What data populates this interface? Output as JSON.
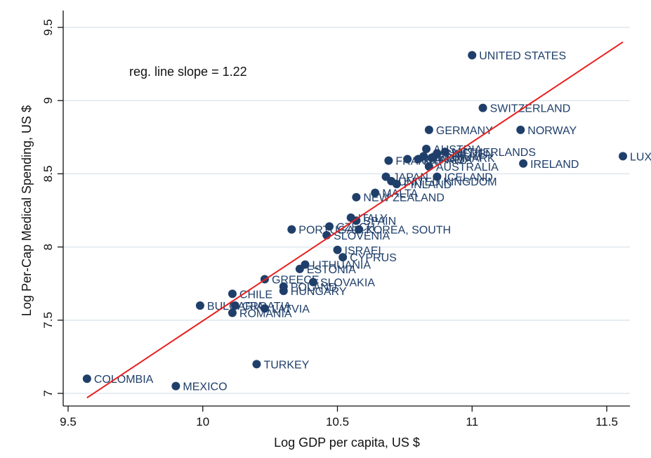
{
  "chart_data": {
    "type": "scatter",
    "xlabel": "Log GDP per capita, US $",
    "ylabel": "Log Per-Cap Medical Spending, US $",
    "xlim": [
      9.5,
      11.6
    ],
    "ylim": [
      7.0,
      9.5
    ],
    "x_ticks": [
      "9.5",
      "10",
      "10.5",
      "11",
      "11.5"
    ],
    "y_ticks": [
      "7",
      "7.5",
      "8",
      "8.5",
      "9",
      "9.5"
    ],
    "grid": "horizontal",
    "annotation": "reg. line slope = 1.22",
    "regression_line": {
      "slope": 1.22,
      "x": [
        9.57,
        11.56
      ],
      "y": [
        6.97,
        9.4
      ]
    },
    "marker_color": "#1f3f6a",
    "line_color": "#e8201f",
    "points": [
      {
        "label": "UNITED STATES",
        "x": 11.0,
        "y": 9.31
      },
      {
        "label": "SWITZERLAND",
        "x": 11.04,
        "y": 8.95
      },
      {
        "label": "GERMANY",
        "x": 10.84,
        "y": 8.8
      },
      {
        "label": "NORWAY",
        "x": 11.18,
        "y": 8.8
      },
      {
        "label": "LUX",
        "x": 11.56,
        "y": 8.62
      },
      {
        "label": "IRELAND",
        "x": 11.19,
        "y": 8.57
      },
      {
        "label": "NETHERLANDS",
        "x": 10.9,
        "y": 8.65
      },
      {
        "label": "AUSTRIA",
        "x": 10.83,
        "y": 8.67
      },
      {
        "label": "SWEDEN",
        "x": 10.87,
        "y": 8.64
      },
      {
        "label": "DENMARK",
        "x": 10.85,
        "y": 8.61
      },
      {
        "label": "CANADA",
        "x": 10.8,
        "y": 8.6
      },
      {
        "label": "BELGIUM",
        "x": 10.82,
        "y": 8.62
      },
      {
        "label": "FINLAND",
        "x": 10.76,
        "y": 8.6
      },
      {
        "label": "FRANCE",
        "x": 10.69,
        "y": 8.59
      },
      {
        "label": "AUSTRALIA",
        "x": 10.84,
        "y": 8.55
      },
      {
        "label": "JAPAN",
        "x": 10.68,
        "y": 8.48
      },
      {
        "label": "ICELAND",
        "x": 10.87,
        "y": 8.48
      },
      {
        "label": "UNITED KINGDOM",
        "x": 10.7,
        "y": 8.45
      },
      {
        "label": "FINLAND",
        "x": 10.72,
        "y": 8.43
      },
      {
        "label": "MALTA",
        "x": 10.64,
        "y": 8.37
      },
      {
        "label": "NEW ZEALAND",
        "x": 10.57,
        "y": 8.34
      },
      {
        "label": "ITALY",
        "x": 10.55,
        "y": 8.2
      },
      {
        "label": "SPAIN",
        "x": 10.57,
        "y": 8.18
      },
      {
        "label": "PORTUGAL",
        "x": 10.33,
        "y": 8.12
      },
      {
        "label": "CZECH",
        "x": 10.47,
        "y": 8.14
      },
      {
        "label": "KOREA, SOUTH",
        "x": 10.58,
        "y": 8.12
      },
      {
        "label": "SLOVENIA",
        "x": 10.46,
        "y": 8.08
      },
      {
        "label": "ISRAEL",
        "x": 10.5,
        "y": 7.98
      },
      {
        "label": "CYPRUS",
        "x": 10.52,
        "y": 7.93
      },
      {
        "label": "LITHUANIA",
        "x": 10.38,
        "y": 7.88
      },
      {
        "label": "ESTONIA",
        "x": 10.36,
        "y": 7.85
      },
      {
        "label": "GREECE",
        "x": 10.23,
        "y": 7.78
      },
      {
        "label": "SLOVAKIA",
        "x": 10.41,
        "y": 7.76
      },
      {
        "label": "POLAND",
        "x": 10.3,
        "y": 7.73
      },
      {
        "label": "HUNGARY",
        "x": 10.3,
        "y": 7.7
      },
      {
        "label": "CHILE",
        "x": 10.11,
        "y": 7.68
      },
      {
        "label": "BULGARIA",
        "x": 9.99,
        "y": 7.6
      },
      {
        "label": "CROATIA",
        "x": 10.12,
        "y": 7.6
      },
      {
        "label": "LATVIA",
        "x": 10.23,
        "y": 7.58
      },
      {
        "label": "ROMANIA",
        "x": 10.11,
        "y": 7.55
      },
      {
        "label": "TURKEY",
        "x": 10.2,
        "y": 7.2
      },
      {
        "label": "COLOMBIA",
        "x": 9.57,
        "y": 7.1
      },
      {
        "label": "MEXICO",
        "x": 9.9,
        "y": 7.05
      }
    ]
  }
}
